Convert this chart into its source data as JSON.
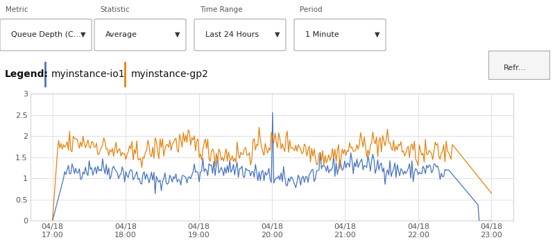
{
  "blue_color": "#4472c4",
  "orange_color": "#e8820c",
  "background_color": "#ffffff",
  "grid_color": "#e0e0e0",
  "ylim": [
    0,
    3
  ],
  "yticks": [
    0,
    0.5,
    1,
    1.5,
    2,
    2.5,
    3
  ],
  "xtick_labels": [
    "04/18\n17:00",
    "04/18\n18:00",
    "04/18\n19:00",
    "04/18\n20:00",
    "04/18\n21:00",
    "04/18\n22:00",
    "04/18\n23:00"
  ],
  "legend_label_blue": "myinstance-io1",
  "legend_label_orange": "myinstance-gp2",
  "legend_prefix": "Legend:",
  "ui_metric_label": "Metric",
  "ui_metric_value": "Queue Depth (C...",
  "ui_statistic_label": "Statistic",
  "ui_statistic_value": "Average",
  "ui_timerange_label": "Time Range",
  "ui_timerange_value": "Last 24 Hours",
  "ui_period_label": "Period",
  "ui_period_value": "1 Minute",
  "n_points": 360,
  "random_seed": 42
}
